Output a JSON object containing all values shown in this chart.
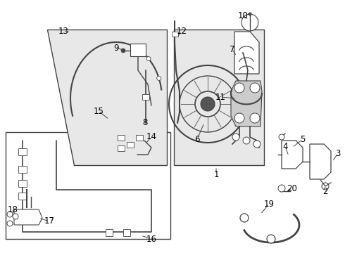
{
  "bg_color": "#ffffff",
  "line_color": "#444444",
  "box_fill": "#e8e8e8",
  "label_fontsize": 8.5,
  "figsize": [
    4.9,
    3.6
  ],
  "dpi": 100
}
